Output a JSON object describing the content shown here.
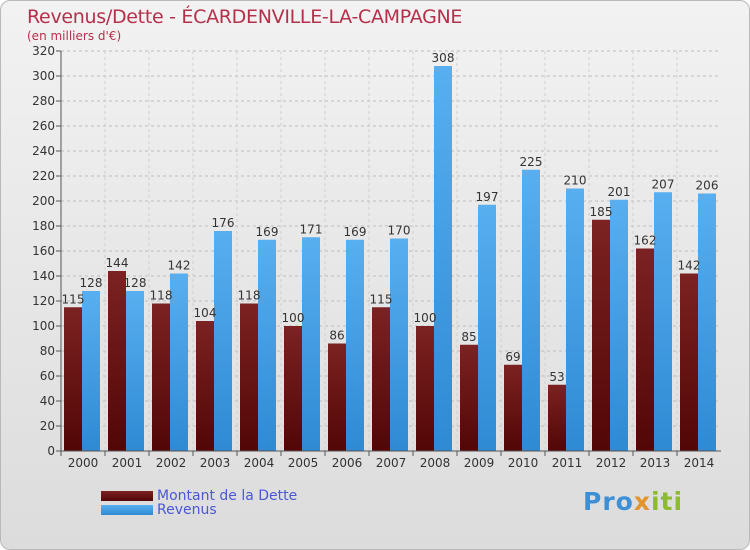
{
  "title": "Revenus/Dette - ÉCARDENVILLE-LA-CAMPAGNE",
  "subtitle": "(en milliers d'€)",
  "colors": {
    "dette": "#6b1313",
    "revenus": "#4aa3e8",
    "title": "#b5304a",
    "legend_text": "#4a57d6"
  },
  "chart_data": {
    "type": "bar",
    "categories": [
      "2000",
      "2001",
      "2002",
      "2003",
      "2004",
      "2005",
      "2006",
      "2007",
      "2008",
      "2009",
      "2010",
      "2011",
      "2012",
      "2013",
      "2014"
    ],
    "series": [
      {
        "name": "Montant de la Dette",
        "values": [
          115,
          144,
          118,
          104,
          118,
          100,
          86,
          115,
          100,
          85,
          69,
          53,
          185,
          162,
          142
        ]
      },
      {
        "name": "Revenus",
        "values": [
          128,
          128,
          142,
          176,
          169,
          171,
          169,
          170,
          308,
          197,
          225,
          210,
          201,
          207,
          206
        ]
      }
    ],
    "ylim": [
      0,
      320
    ],
    "yticks": [
      0,
      20,
      40,
      60,
      80,
      100,
      120,
      140,
      160,
      180,
      200,
      220,
      240,
      260,
      280,
      300,
      320
    ],
    "title": "Revenus/Dette - ÉCARDENVILLE-LA-CAMPAGNE",
    "ylabel": "(en milliers d'€)",
    "legend_position": "bottom-left"
  },
  "legend": [
    {
      "label": "Montant de la Dette",
      "color": "#6b1313"
    },
    {
      "label": "Revenus",
      "color": "#4aa3e8"
    }
  ],
  "logo": {
    "part1": "Pro",
    "part2": "x",
    "part3": "iti"
  }
}
